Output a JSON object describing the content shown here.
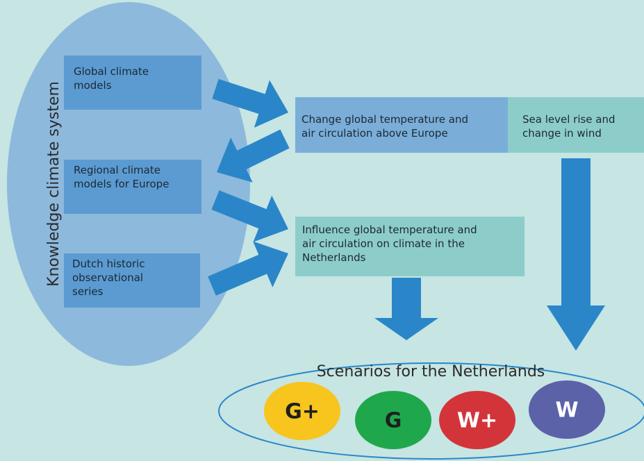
{
  "knowledge_system": {
    "label": "Knowledge climate system",
    "sources": [
      {
        "lines": [
          "Global climate",
          "models"
        ]
      },
      {
        "lines": [
          "Regional climate",
          "models for Europe"
        ]
      },
      {
        "lines": [
          "Dutch historic",
          "observational",
          "series"
        ]
      }
    ]
  },
  "effects": [
    {
      "lines": [
        "Change global temperature and",
        "air circulation above Europe"
      ]
    },
    {
      "lines": [
        "Sea level rise and",
        "change in wind"
      ]
    },
    {
      "lines": [
        "Influence global temperature and",
        "air circulation on climate in the",
        "Netherlands"
      ]
    }
  ],
  "scenarios": {
    "title": "Scenarios for the Netherlands",
    "items": [
      "G+",
      "G",
      "W+",
      "W"
    ]
  }
}
